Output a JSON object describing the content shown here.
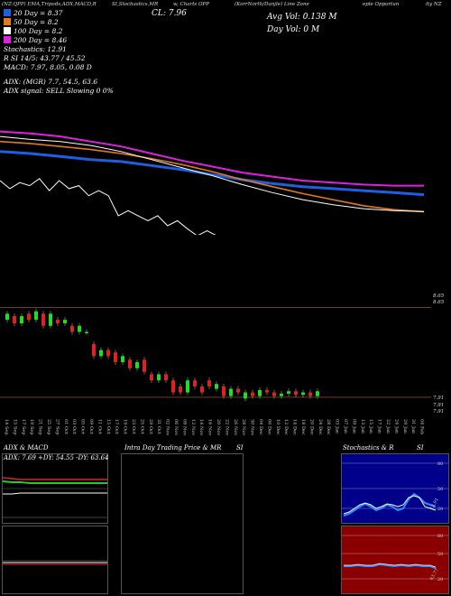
{
  "header": {
    "segments": [
      "(NZ:QPP) EMA,Tripods,ADX,MACD,R",
      "SI,Stochastics,MR",
      "w, Charts OPP",
      "(KorrNorth/Danjle) Line Zone",
      "eple Opportun",
      "ity NZ"
    ],
    "cl_label": "CL: 7.96",
    "avg_vol": "Avg Vol: 0.138  M",
    "day_vol": "Day Vol: 0  M"
  },
  "legend": {
    "items": [
      {
        "label": "20 Day = 8.37",
        "color": "#1e5fe0"
      },
      {
        "label": "50 Day = 8.2",
        "color": "#e07a1e"
      },
      {
        "label": "100 Day = 8.2",
        "color": "#ffffff"
      },
      {
        "label": "200 Day = 8.46",
        "color": "#e020e0"
      }
    ],
    "lines": [
      "Stochastics: 12.91",
      "R        SI 14/5: 43.77 / 45.52",
      "MACD: 7.97,  8.05,  0.08  D",
      "",
      "ADX:                 (MGR) 7.7,  54.5,  63.6",
      "ADX  signal: SELL  Slowing 0 0%"
    ]
  },
  "price_labels": [
    "8.65",
    "8.65",
    "7.91",
    "7.91",
    "7.91"
  ],
  "date_labels": [
    "14 Sep",
    "15 Sep",
    "17 Sep",
    "19 Sep",
    "21 Sep",
    "25 Sep",
    "27 Sep",
    "01 Oct",
    "03 Oct",
    "05 Oct",
    "09 Oct",
    "11 Oct",
    "15 Oct",
    "17 Oct",
    "19 Oct",
    "23 Oct",
    "25 Oct",
    "29 Oct",
    "31 Oct",
    "02 Nov",
    "06 Nov",
    "08 Nov",
    "12 Nov",
    "14 Nov",
    "16 Nov",
    "20 Nov",
    "22 Nov",
    "26 Nov",
    "28 Nov",
    "30 Nov",
    "04 Dec",
    "06 Dec",
    "10 Dec",
    "12 Dec",
    "14 Dec",
    "18 Dec",
    "20 Dec",
    "24 Dec",
    "28 Dec",
    "03 Jan",
    "07 Jan",
    "09 Jan",
    "13 Jan",
    "15 Jan",
    "17 Jan",
    "22 Jan",
    "24 Jan",
    "29 Jan",
    "31 Jan",
    "04 Feb"
  ],
  "panels": {
    "adx": {
      "title": "ADX & MACD",
      "readout": "ADX: 7.69  +DY: 54.55  -DY: 63.64"
    },
    "intraday": {
      "title": "Intra Day Trading Price & MR",
      "title_right": "SI"
    },
    "stoch": {
      "title": "Stochastics & R",
      "title_right": "SI",
      "ticks": [
        "80",
        "50",
        "20"
      ],
      "value_label": "12.91"
    },
    "rsi": {
      "ticks": [
        "80",
        "50",
        "20"
      ],
      "value_label": "43.77"
    }
  },
  "chart_data": {
    "type": "line",
    "title": "",
    "series": [
      {
        "name": "20 Day = 8.37",
        "color": "#1e5fe0",
        "values": [
          8.8,
          8.78,
          8.75,
          8.72,
          8.7,
          8.66,
          8.62,
          8.57,
          8.52,
          8.48,
          8.45,
          8.43,
          8.41,
          8.39,
          8.37
        ]
      },
      {
        "name": "50 Day = 8.2",
        "color": "#e07a1e",
        "values": [
          8.9,
          8.88,
          8.85,
          8.82,
          8.78,
          8.73,
          8.67,
          8.6,
          8.52,
          8.45,
          8.38,
          8.32,
          8.26,
          8.22,
          8.2
        ]
      },
      {
        "name": "100 Day = 8.2",
        "color": "#ffffff",
        "values": [
          8.95,
          8.92,
          8.9,
          8.86,
          8.8,
          8.72,
          8.64,
          8.56,
          8.47,
          8.39,
          8.32,
          8.27,
          8.23,
          8.21,
          8.2
        ]
      },
      {
        "name": "200 Day = 8.46",
        "color": "#e020e0",
        "values": [
          9.0,
          8.98,
          8.95,
          8.9,
          8.85,
          8.78,
          8.71,
          8.65,
          8.59,
          8.55,
          8.51,
          8.49,
          8.47,
          8.46,
          8.46
        ]
      }
    ],
    "candles": [
      [
        8.55,
        8.6
      ],
      [
        8.58,
        8.52
      ],
      [
        8.52,
        8.58
      ],
      [
        8.6,
        8.55
      ],
      [
        8.55,
        8.62
      ],
      [
        8.6,
        8.5
      ],
      [
        8.5,
        8.6
      ],
      [
        8.55,
        8.52
      ],
      [
        8.52,
        8.55
      ],
      [
        8.5,
        8.45
      ],
      [
        8.45,
        8.5
      ],
      [
        8.45,
        8.45
      ],
      [
        8.35,
        8.25
      ],
      [
        8.25,
        8.3
      ],
      [
        8.3,
        8.25
      ],
      [
        8.28,
        8.2
      ],
      [
        8.2,
        8.25
      ],
      [
        8.22,
        8.15
      ],
      [
        8.15,
        8.2
      ],
      [
        8.22,
        8.12
      ],
      [
        8.1,
        8.05
      ],
      [
        8.05,
        8.1
      ],
      [
        8.1,
        8.05
      ],
      [
        8.05,
        7.95
      ],
      [
        8.0,
        7.95
      ],
      [
        7.95,
        8.05
      ],
      [
        8.05,
        8.0
      ],
      [
        8.0,
        7.95
      ],
      [
        8.05,
        8.0
      ],
      [
        7.98,
        8.02
      ],
      [
        8.0,
        7.92
      ],
      [
        7.92,
        7.98
      ],
      [
        7.98,
        7.95
      ],
      [
        7.9,
        7.95
      ],
      [
        7.95,
        7.92
      ],
      [
        7.92,
        7.97
      ],
      [
        7.97,
        7.95
      ],
      [
        7.95,
        7.92
      ],
      [
        7.92,
        7.94
      ],
      [
        7.94,
        7.96
      ],
      [
        7.96,
        7.93
      ],
      [
        7.93,
        7.95
      ],
      [
        7.95,
        7.92
      ],
      [
        7.92,
        7.96
      ]
    ]
  }
}
